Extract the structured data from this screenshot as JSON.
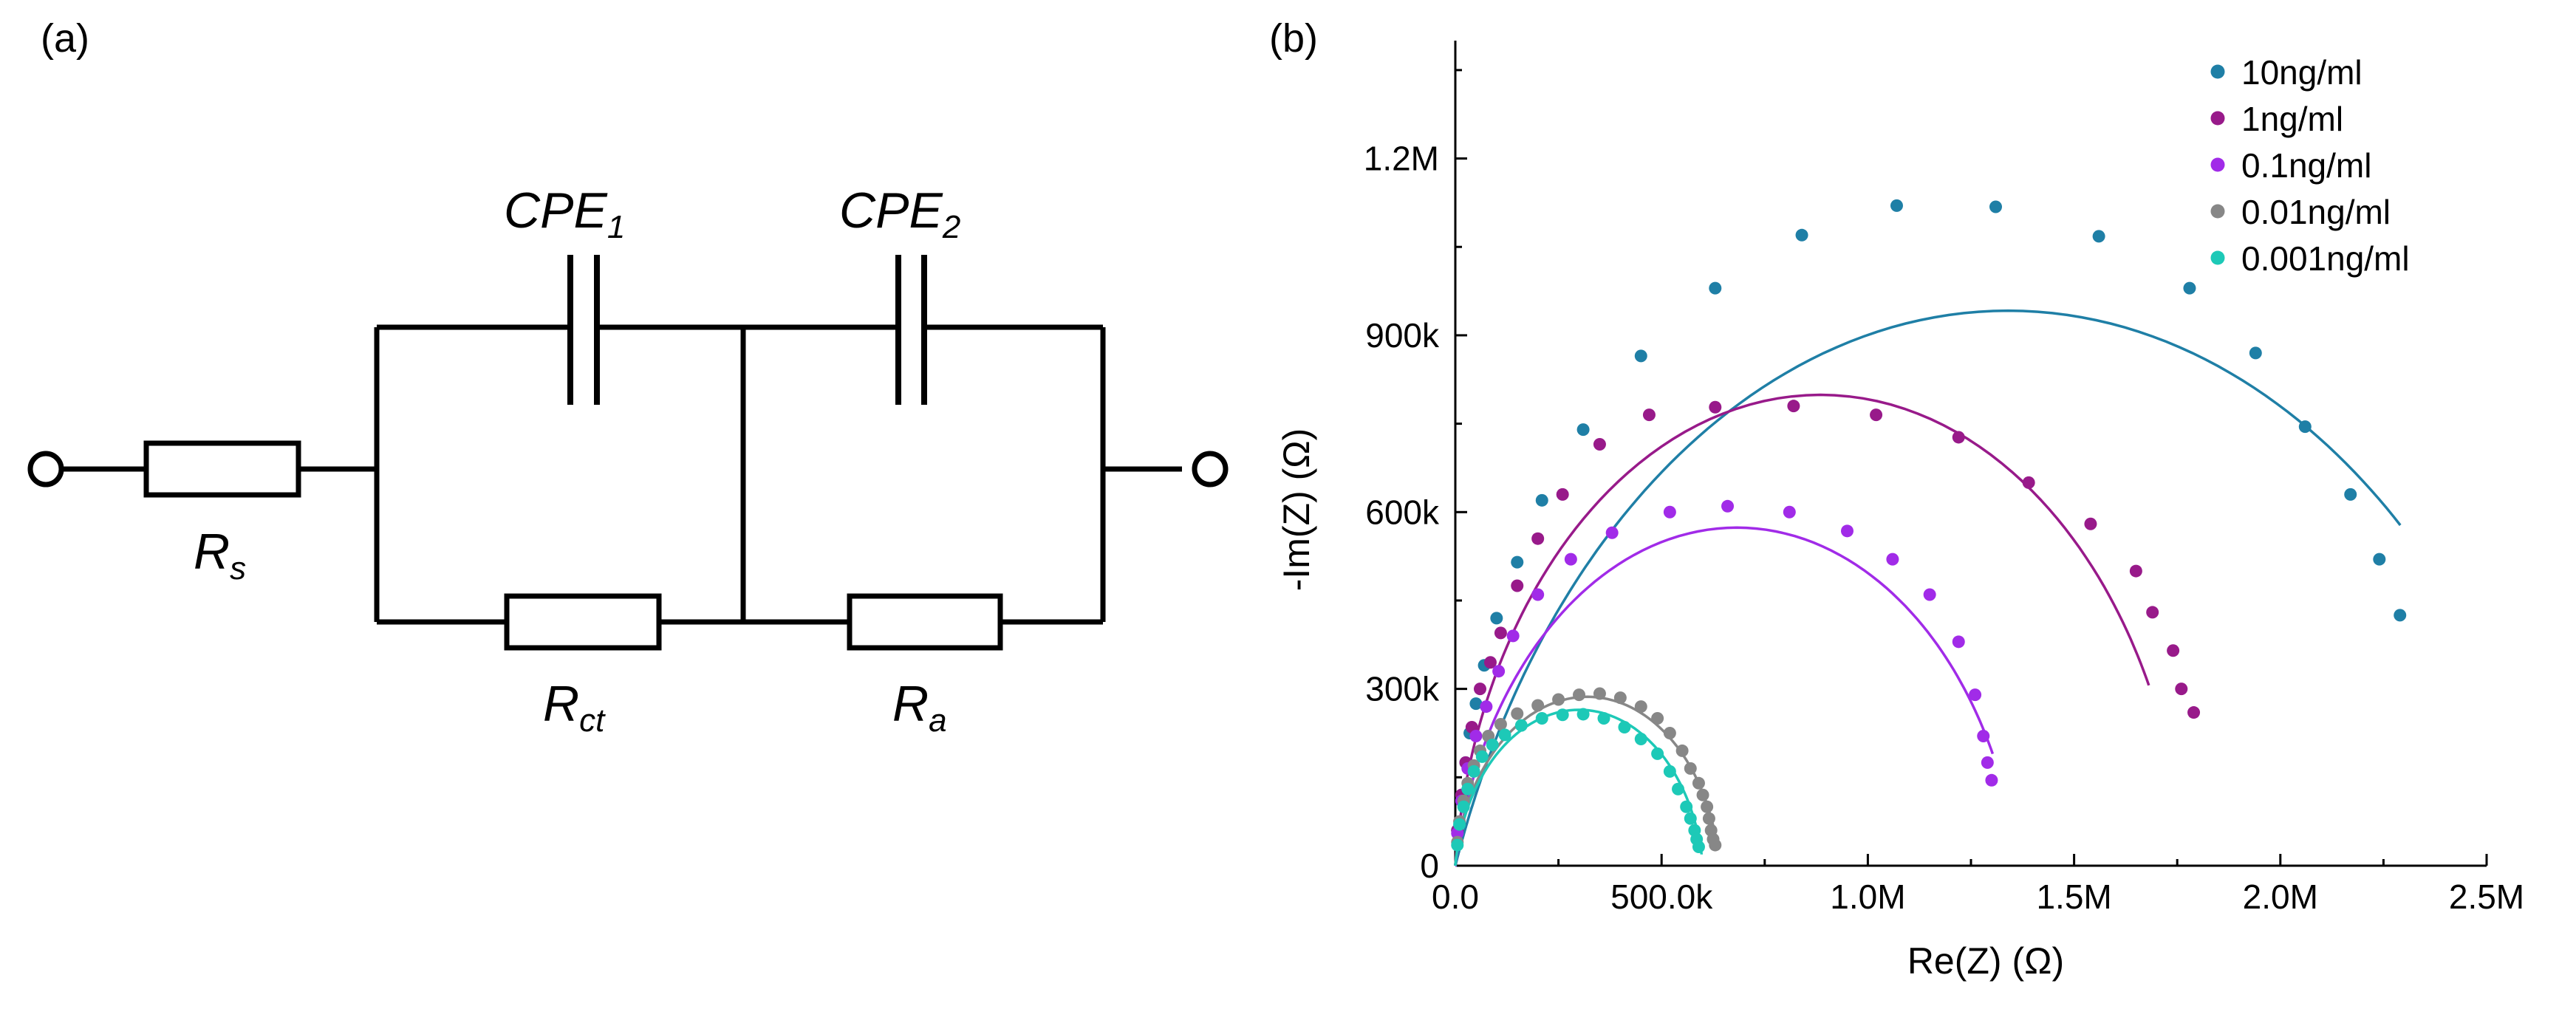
{
  "panel_a": {
    "label": "(a)",
    "components": {
      "rs": {
        "main": "R",
        "sub": "s"
      },
      "rct": {
        "main": "R",
        "sub": "ct"
      },
      "ra": {
        "main": "R",
        "sub": "a"
      },
      "cpe1": {
        "main": "CPE",
        "sub": "1"
      },
      "cpe2": {
        "main": "CPE",
        "sub": "2"
      }
    }
  },
  "panel_b": {
    "label": "(b)"
  },
  "chart_data": {
    "type": "scatter",
    "title": "",
    "xlabel": "Re(Z) (Ω)",
    "ylabel": "-Im(Z) (Ω)",
    "xlim": [
      0,
      2500000
    ],
    "ylim": [
      0,
      1400000
    ],
    "x_ticks": [
      {
        "value": 0,
        "label": "0.0"
      },
      {
        "value": 500000,
        "label": "500.0k"
      },
      {
        "value": 1000000,
        "label": "1.0M"
      },
      {
        "value": 1500000,
        "label": "1.5M"
      },
      {
        "value": 2000000,
        "label": "2.0M"
      },
      {
        "value": 2500000,
        "label": "2.5M"
      }
    ],
    "y_ticks": [
      {
        "value": 0,
        "label": "0"
      },
      {
        "value": 300000,
        "label": "300k"
      },
      {
        "value": 600000,
        "label": "600k"
      },
      {
        "value": 900000,
        "label": "900k"
      },
      {
        "value": 1200000,
        "label": "1.2M"
      }
    ],
    "legend_position": "top-right",
    "series": [
      {
        "name": "10ng/ml",
        "color": "#1F7FA6",
        "points": [
          [
            5000,
            60000
          ],
          [
            15000,
            120000
          ],
          [
            25000,
            175000
          ],
          [
            35000,
            225000
          ],
          [
            50000,
            275000
          ],
          [
            70000,
            340000
          ],
          [
            100000,
            420000
          ],
          [
            150000,
            515000
          ],
          [
            210000,
            620000
          ],
          [
            310000,
            740000
          ],
          [
            450000,
            865000
          ],
          [
            630000,
            980000
          ],
          [
            840000,
            1070000
          ],
          [
            1070000,
            1120000
          ],
          [
            1310000,
            1118000
          ],
          [
            1560000,
            1068000
          ],
          [
            1780000,
            980000
          ],
          [
            1940000,
            870000
          ],
          [
            2060000,
            745000
          ],
          [
            2170000,
            630000
          ],
          [
            2240000,
            520000
          ],
          [
            2290000,
            425000
          ]
        ],
        "fit": {
          "rs": 0,
          "r": 2680000,
          "alpha": 0.78,
          "from": 0,
          "to": 2300000
        }
      },
      {
        "name": "1ng/ml",
        "color": "#981A8A",
        "points": [
          [
            5000,
            60000
          ],
          [
            15000,
            120000
          ],
          [
            25000,
            175000
          ],
          [
            40000,
            235000
          ],
          [
            60000,
            300000
          ],
          [
            85000,
            345000
          ],
          [
            110000,
            395000
          ],
          [
            150000,
            475000
          ],
          [
            200000,
            555000
          ],
          [
            260000,
            630000
          ],
          [
            350000,
            715000
          ],
          [
            470000,
            765000
          ],
          [
            630000,
            778000
          ],
          [
            820000,
            780000
          ],
          [
            1020000,
            765000
          ],
          [
            1220000,
            727000
          ],
          [
            1390000,
            650000
          ],
          [
            1540000,
            580000
          ],
          [
            1650000,
            500000
          ],
          [
            1690000,
            430000
          ],
          [
            1740000,
            365000
          ],
          [
            1760000,
            300000
          ],
          [
            1790000,
            260000
          ]
        ],
        "fit": {
          "rs": 0,
          "r": 1770000,
          "alpha": 0.935,
          "from": 0,
          "to": 1685000
        }
      },
      {
        "name": "0.1ng/ml",
        "color": "#A12BE8",
        "points": [
          [
            5000,
            55000
          ],
          [
            15000,
            110000
          ],
          [
            30000,
            165000
          ],
          [
            50000,
            220000
          ],
          [
            75000,
            270000
          ],
          [
            105000,
            330000
          ],
          [
            140000,
            390000
          ],
          [
            200000,
            460000
          ],
          [
            280000,
            520000
          ],
          [
            380000,
            565000
          ],
          [
            520000,
            600000
          ],
          [
            660000,
            610000
          ],
          [
            810000,
            600000
          ],
          [
            950000,
            568000
          ],
          [
            1060000,
            520000
          ],
          [
            1150000,
            460000
          ],
          [
            1220000,
            380000
          ],
          [
            1260000,
            290000
          ],
          [
            1280000,
            220000
          ],
          [
            1290000,
            175000
          ],
          [
            1300000,
            145000
          ]
        ],
        "fit": {
          "rs": 0,
          "r": 1365000,
          "alpha": 0.89,
          "from": 0,
          "to": 1305000
        }
      },
      {
        "name": "0.01ng/ml",
        "color": "#878787",
        "points": [
          [
            5000,
            40000
          ],
          [
            10000,
            75000
          ],
          [
            20000,
            110000
          ],
          [
            30000,
            140000
          ],
          [
            45000,
            170000
          ],
          [
            60000,
            195000
          ],
          [
            80000,
            220000
          ],
          [
            110000,
            240000
          ],
          [
            150000,
            258000
          ],
          [
            200000,
            272000
          ],
          [
            250000,
            282000
          ],
          [
            300000,
            290000
          ],
          [
            350000,
            292000
          ],
          [
            400000,
            285000
          ],
          [
            450000,
            270000
          ],
          [
            490000,
            250000
          ],
          [
            520000,
            225000
          ],
          [
            550000,
            195000
          ],
          [
            570000,
            165000
          ],
          [
            590000,
            140000
          ],
          [
            600000,
            120000
          ],
          [
            610000,
            100000
          ],
          [
            615000,
            80000
          ],
          [
            620000,
            60000
          ],
          [
            625000,
            45000
          ],
          [
            630000,
            35000
          ]
        ],
        "fit": {
          "rs": 0,
          "r": 640000,
          "alpha": 0.93,
          "from": 0,
          "to": 635000
        }
      },
      {
        "name": "0.001ng/ml",
        "color": "#1DC9B7",
        "points": [
          [
            5000,
            35000
          ],
          [
            10000,
            70000
          ],
          [
            20000,
            100000
          ],
          [
            30000,
            130000
          ],
          [
            45000,
            160000
          ],
          [
            65000,
            185000
          ],
          [
            90000,
            205000
          ],
          [
            120000,
            222000
          ],
          [
            160000,
            238000
          ],
          [
            210000,
            250000
          ],
          [
            260000,
            256000
          ],
          [
            310000,
            257000
          ],
          [
            360000,
            250000
          ],
          [
            410000,
            235000
          ],
          [
            450000,
            215000
          ],
          [
            490000,
            190000
          ],
          [
            520000,
            160000
          ],
          [
            540000,
            130000
          ],
          [
            560000,
            100000
          ],
          [
            570000,
            80000
          ],
          [
            580000,
            60000
          ],
          [
            585000,
            45000
          ],
          [
            590000,
            32000
          ]
        ],
        "fit": {
          "rs": 0,
          "r": 600000,
          "alpha": 0.92,
          "from": 0,
          "to": 597000
        }
      }
    ]
  }
}
